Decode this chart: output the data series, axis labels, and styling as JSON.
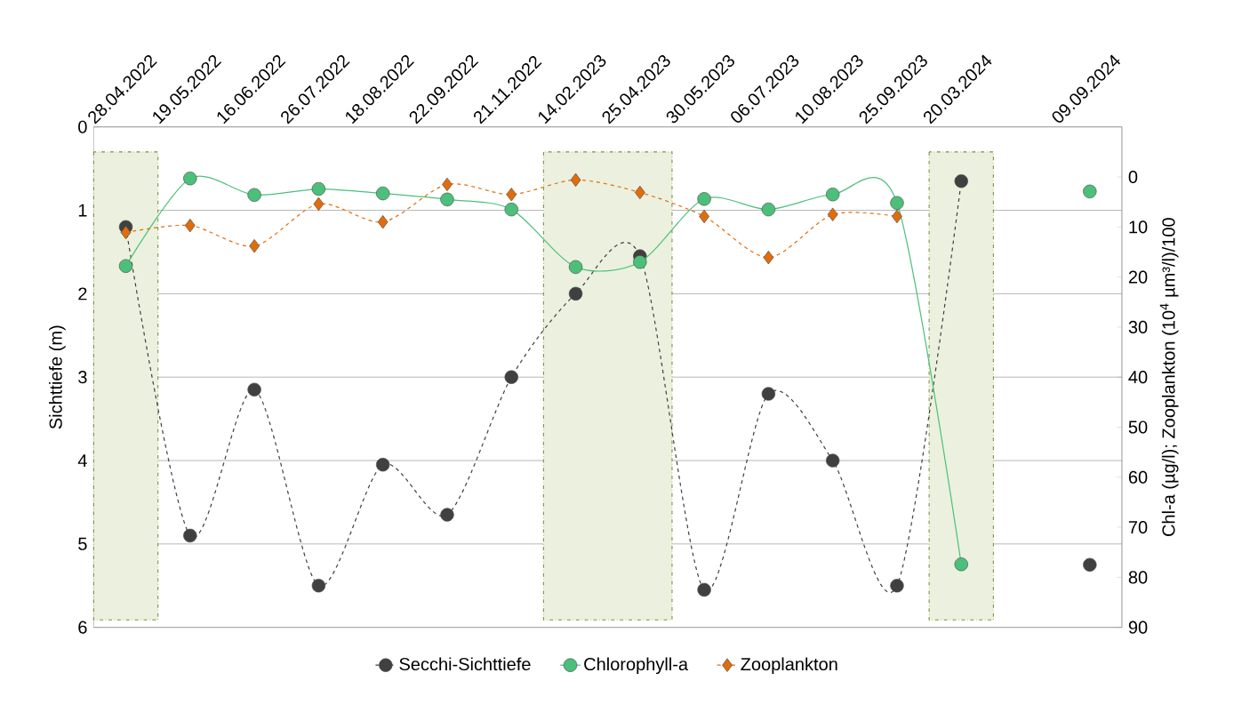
{
  "chart_data": {
    "type": "line",
    "categories": [
      "28.04.2022",
      "19.05.2022",
      "16.06.2022",
      "26.07.2022",
      "18.08.2022",
      "22.09.2022",
      "21.11.2022",
      "14.02.2023",
      "25.04.2023",
      "30.05.2023",
      "06.07.2023",
      "10.08.2023",
      "25.09.2023",
      "20.03.2024",
      null,
      "09.09.2024"
    ],
    "series": [
      {
        "name": "Secchi-Sichttiefe",
        "color": "#404040",
        "marker": "circle",
        "line_style": "dashed",
        "axis": "y",
        "values": [
          1.2,
          4.9,
          3.15,
          5.5,
          4.05,
          4.65,
          3.0,
          2.0,
          1.55,
          5.55,
          3.2,
          4.0,
          5.5,
          0.65,
          null,
          5.25
        ]
      },
      {
        "name": "Chlorophyll-a",
        "color": "#4cc07a",
        "marker": "circle",
        "line_style": "solid",
        "axis": "y2",
        "values": [
          17.8,
          0.3,
          3.6,
          2.4,
          3.3,
          4.5,
          6.5,
          18,
          17,
          4.4,
          6.5,
          3.5,
          5.2,
          77.4,
          null,
          2.9
        ]
      },
      {
        "name": "Zooplankton",
        "color": "#e36c0a",
        "marker": "diamond",
        "line_style": "dashed",
        "axis": "y2",
        "values": [
          11.1,
          9.7,
          13.8,
          5.4,
          9.0,
          1.5,
          3.5,
          0.6,
          3.1,
          7.9,
          16.1,
          7.5,
          7.9,
          null,
          null,
          null
        ]
      }
    ],
    "ylabel": "Sichttiefe (m)",
    "y2label": "Chl-a (µg/l); Zooplankton (10$^{4}$ µm³/l)/100",
    "ylim": [
      6,
      0
    ],
    "yticks": [
      0,
      1,
      2,
      3,
      4,
      5,
      6
    ],
    "y2lim": [
      90,
      -10
    ],
    "y2ticks": [
      0,
      10,
      20,
      30,
      40,
      50,
      60,
      70,
      80,
      90
    ],
    "bands": [
      {
        "axis": "x",
        "from": "28.04.2022",
        "to": "28.04.2022",
        "color": "#ebf1de"
      },
      {
        "axis": "x",
        "from": "14.02.2023",
        "to": "25.04.2023",
        "color": "#ebf1de"
      },
      {
        "axis": "x",
        "from": "20.03.2024",
        "to": "20.03.2024",
        "color": "#ebf1de"
      }
    ],
    "grid": "y",
    "legend": "bottom"
  }
}
